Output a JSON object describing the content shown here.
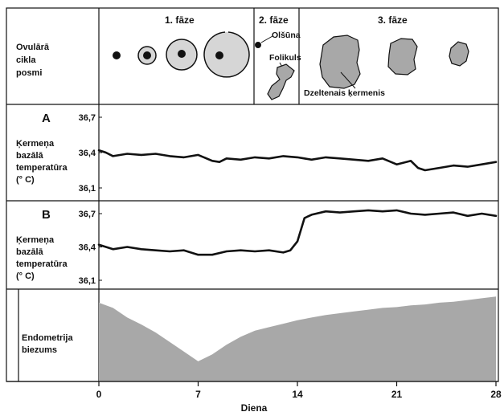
{
  "figure": {
    "row_label_lines": [
      "Ovulārā",
      "cikla",
      "posmi"
    ],
    "phases": [
      {
        "label": "1. fāze"
      },
      {
        "label": "2. fāze"
      },
      {
        "label": "3. fāze"
      }
    ],
    "annotations": {
      "ova": "Olšūna",
      "follicle": "Folikuls",
      "corpus_luteum": "Dzeltenais ķermenis"
    },
    "endometrium_label_lines": [
      "Endometrija",
      "biezums"
    ]
  },
  "colors": {
    "fill_gray": "#a8a8a8",
    "follicle_light": "#d6d6d6",
    "line": "#111111"
  },
  "chart_data": [
    {
      "type": "line",
      "panel": "A",
      "ylabel_lines": [
        "Ķermeņa",
        "bazālā",
        "temperatūra",
        "(° C)"
      ],
      "yticks": [
        "36,7",
        "36,4",
        "36,1"
      ],
      "ylim": [
        36.1,
        36.7
      ],
      "xlim": [
        0,
        28
      ],
      "x": [
        0,
        0.5,
        1,
        2,
        3,
        4,
        5,
        6,
        7,
        8,
        8.5,
        9,
        10,
        11,
        12,
        13,
        14,
        15,
        16,
        17,
        18,
        19,
        20,
        21,
        22,
        22.5,
        23,
        24,
        25,
        26,
        27,
        28
      ],
      "values": [
        36.42,
        36.4,
        36.37,
        36.39,
        36.38,
        36.39,
        36.37,
        36.36,
        36.38,
        36.33,
        36.32,
        36.35,
        36.34,
        36.36,
        36.35,
        36.37,
        36.36,
        36.34,
        36.36,
        36.35,
        36.34,
        36.33,
        36.35,
        36.3,
        36.33,
        36.27,
        36.25,
        36.27,
        36.29,
        36.28,
        36.3,
        36.32
      ]
    },
    {
      "type": "line",
      "panel": "B",
      "ylabel_lines": [
        "Ķermeņa",
        "bazālā",
        "temperatūra",
        "(° C)"
      ],
      "yticks": [
        "36,7",
        "36,4",
        "36,1"
      ],
      "ylim": [
        36.1,
        36.7
      ],
      "xlim": [
        0,
        28
      ],
      "x": [
        0,
        0.5,
        1,
        2,
        3,
        4,
        5,
        6,
        7,
        8,
        9,
        10,
        11,
        12,
        13,
        13.5,
        14,
        14.5,
        15,
        16,
        17,
        18,
        19,
        20,
        21,
        22,
        23,
        24,
        25,
        26,
        27,
        28
      ],
      "values": [
        36.42,
        36.4,
        36.38,
        36.4,
        36.38,
        36.37,
        36.36,
        36.37,
        36.33,
        36.33,
        36.36,
        36.37,
        36.36,
        36.37,
        36.35,
        36.37,
        36.45,
        36.66,
        36.69,
        36.72,
        36.71,
        36.72,
        36.73,
        36.72,
        36.73,
        36.7,
        36.69,
        36.7,
        36.71,
        36.68,
        36.7,
        36.68
      ]
    },
    {
      "type": "area",
      "panel": "Endometrium",
      "xlim": [
        0,
        28
      ],
      "x": [
        0,
        1,
        2,
        3,
        4,
        5,
        6,
        7,
        8,
        9,
        10,
        11,
        12,
        13,
        14,
        15,
        16,
        17,
        18,
        19,
        20,
        21,
        22,
        23,
        24,
        25,
        26,
        27,
        28
      ],
      "values": [
        0.9,
        0.84,
        0.73,
        0.65,
        0.56,
        0.45,
        0.34,
        0.23,
        0.31,
        0.42,
        0.51,
        0.58,
        0.62,
        0.66,
        0.7,
        0.73,
        0.76,
        0.78,
        0.8,
        0.82,
        0.84,
        0.85,
        0.87,
        0.88,
        0.9,
        0.91,
        0.93,
        0.95,
        0.97
      ]
    }
  ],
  "x_axis": {
    "ticks": [
      "0",
      "7",
      "14",
      "21",
      "28"
    ],
    "tick_values": [
      0,
      7,
      14,
      21,
      28
    ],
    "label": "Diena"
  }
}
